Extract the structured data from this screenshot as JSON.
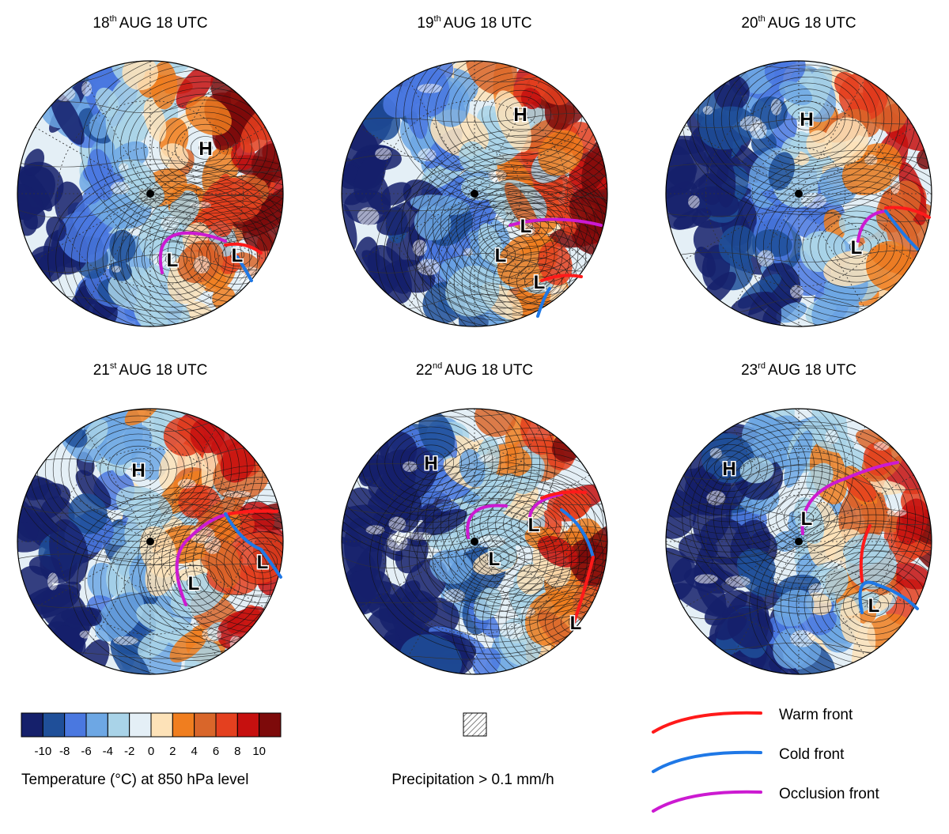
{
  "panels": [
    {
      "title": {
        "day": "18",
        "suffix": "th",
        "time": "AUG 18 UTC"
      },
      "markers": [
        "H",
        "L",
        "L"
      ]
    },
    {
      "title": {
        "day": "19",
        "suffix": "th",
        "time": "AUG 18 UTC"
      },
      "markers": [
        "H",
        "L",
        "L",
        "L"
      ]
    },
    {
      "title": {
        "day": "20",
        "suffix": "th",
        "time": "AUG 18 UTC"
      },
      "markers": [
        "H",
        "L"
      ]
    },
    {
      "title": {
        "day": "21",
        "suffix": "st",
        "time": "AUG 18 UTC"
      },
      "markers": [
        "H",
        "L",
        "L"
      ]
    },
    {
      "title": {
        "day": "22",
        "suffix": "nd",
        "time": "AUG 18 UTC"
      },
      "markers": [
        "H",
        "L",
        "L",
        "L"
      ]
    },
    {
      "title": {
        "day": "23",
        "suffix": "rd",
        "time": "AUG 18 UTC"
      },
      "markers": [
        "H",
        "L",
        "L"
      ]
    }
  ],
  "colorbar": {
    "label": "Temperature (°C) at 850 hPa level",
    "ticks": [
      -10,
      -8,
      -6,
      -4,
      -2,
      0,
      2,
      4,
      6,
      8,
      10
    ],
    "colors": [
      "#15206b",
      "#1f4f99",
      "#4a78e0",
      "#6da7e4",
      "#a9d3e8",
      "#e4eff6",
      "#fde2b8",
      "#f07e1f",
      "#d9662a",
      "#e4401f",
      "#c6100f",
      "#7d0a0a"
    ]
  },
  "precipitation": {
    "label": "Precipitation > 0.1 mm/h"
  },
  "fronts": [
    {
      "name": "Warm front",
      "color": "#ff1a1a"
    },
    {
      "name": "Cold front",
      "color": "#1f78e6"
    },
    {
      "name": "Occlusion front",
      "color": "#cc1ad1"
    }
  ]
}
